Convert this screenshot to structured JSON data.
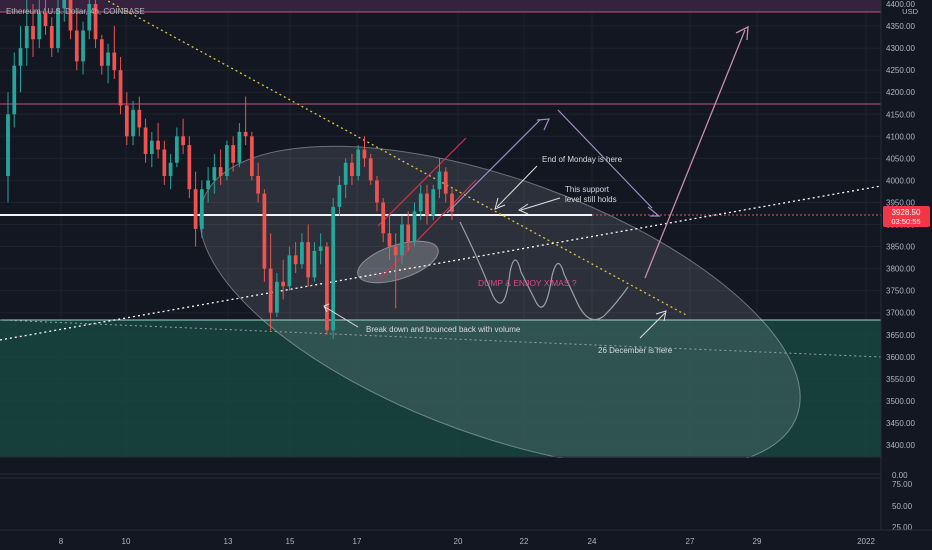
{
  "header": {
    "symbol_title": "Ethereum / U.S. Dollar, 4h, COINBASE",
    "currency": "USD"
  },
  "price_badge": {
    "price": "3928.50",
    "countdown": "03:50:55"
  },
  "annotations": {
    "end_of_monday": "End of Monday is here",
    "support_line1": "This support",
    "support_line2": "level still holds",
    "dump": "DUMP & ENJOY X'MAS ?",
    "breakdown": "Break down and bounced back with volume",
    "december": "26 December is here"
  },
  "colors": {
    "background": "#131722",
    "up_candle": "#26a69a",
    "down_candle": "#ef5350",
    "support_line": "#ffffff",
    "resistance_line": "#c2567c",
    "trendline_yellow": "#d9c43a",
    "green_zone": "#17463f",
    "price_badge": "#f23645",
    "dump_text": "#e0478f"
  },
  "chart_data": {
    "type": "candlestick",
    "symbol": "ETH/USD",
    "interval": "4h",
    "exchange": "COINBASE",
    "x_ticks": [
      "8",
      "10",
      "13",
      "15",
      "17",
      "20",
      "22",
      "24",
      "27",
      "29",
      "2022"
    ],
    "y_ticks": [
      "4400.00",
      "4350.00",
      "4300.00",
      "4250.00",
      "4200.00",
      "4150.00",
      "4100.00",
      "4050.00",
      "4000.00",
      "3950.00",
      "3900.00",
      "3850.00",
      "3800.00",
      "3750.00",
      "3700.00",
      "3650.00",
      "3600.00",
      "3550.00",
      "3500.00",
      "3450.00",
      "3400.00"
    ],
    "indicator_ticks": [
      "0.00",
      "75.00",
      "50.00",
      "25.00"
    ],
    "ylim": [
      3375,
      4410
    ],
    "last_price": 3928.5,
    "horizontal_levels": [
      {
        "name": "top resistance",
        "value": 4380
      },
      {
        "name": "resistance",
        "value": 4172
      },
      {
        "name": "support",
        "value": 3928
      },
      {
        "name": "green zone top",
        "value": 3686
      }
    ],
    "candles": [
      [
        4010,
        4200,
        3950,
        4150
      ],
      [
        4150,
        4290,
        4120,
        4260
      ],
      [
        4260,
        4350,
        4200,
        4300
      ],
      [
        4300,
        4420,
        4260,
        4350
      ],
      [
        4350,
        4400,
        4280,
        4320
      ],
      [
        4320,
        4410,
        4300,
        4380
      ],
      [
        4380,
        4450,
        4330,
        4350
      ],
      [
        4350,
        4370,
        4280,
        4300
      ],
      [
        4300,
        4420,
        4290,
        4390
      ],
      [
        4390,
        4450,
        4360,
        4420
      ],
      [
        4420,
        4440,
        4320,
        4340
      ],
      [
        4340,
        4380,
        4250,
        4270
      ],
      [
        4270,
        4360,
        4240,
        4340
      ],
      [
        4340,
        4420,
        4320,
        4400
      ],
      [
        4400,
        4420,
        4300,
        4320
      ],
      [
        4320,
        4330,
        4240,
        4260
      ],
      [
        4260,
        4310,
        4220,
        4290
      ],
      [
        4290,
        4350,
        4230,
        4250
      ],
      [
        4250,
        4280,
        4150,
        4170
      ],
      [
        4170,
        4200,
        4080,
        4100
      ],
      [
        4100,
        4180,
        4080,
        4160
      ],
      [
        4160,
        4190,
        4100,
        4120
      ],
      [
        4120,
        4140,
        4040,
        4060
      ],
      [
        4060,
        4110,
        4030,
        4090
      ],
      [
        4090,
        4130,
        4050,
        4070
      ],
      [
        4070,
        4090,
        3990,
        4010
      ],
      [
        4010,
        4060,
        3980,
        4040
      ],
      [
        4040,
        4120,
        4030,
        4100
      ],
      [
        4100,
        4140,
        4060,
        4080
      ],
      [
        4080,
        4100,
        3960,
        3980
      ],
      [
        3980,
        4020,
        3850,
        3890
      ],
      [
        3890,
        4000,
        3870,
        3980
      ],
      [
        3980,
        4030,
        3950,
        4000
      ],
      [
        4000,
        4060,
        3970,
        4030
      ],
      [
        4030,
        4070,
        3990,
        4010
      ],
      [
        4010,
        4090,
        4000,
        4080
      ],
      [
        4080,
        4100,
        4020,
        4040
      ],
      [
        4040,
        4130,
        4030,
        4110
      ],
      [
        4110,
        4190,
        4080,
        4100
      ],
      [
        4100,
        4110,
        4000,
        4010
      ],
      [
        4010,
        4040,
        3950,
        3970
      ],
      [
        3970,
        3980,
        3770,
        3800
      ],
      [
        3800,
        3880,
        3660,
        3700
      ],
      [
        3700,
        3790,
        3690,
        3770
      ],
      [
        3770,
        3820,
        3730,
        3760
      ],
      [
        3760,
        3850,
        3750,
        3830
      ],
      [
        3830,
        3860,
        3790,
        3810
      ],
      [
        3810,
        3880,
        3800,
        3860
      ],
      [
        3860,
        3900,
        3760,
        3780
      ],
      [
        3780,
        3860,
        3770,
        3840
      ],
      [
        3840,
        3880,
        3810,
        3850
      ],
      [
        3850,
        3860,
        3650,
        3660
      ],
      [
        3660,
        3960,
        3640,
        3940
      ],
      [
        3940,
        4010,
        3920,
        3990
      ],
      [
        3990,
        4050,
        3960,
        4040
      ],
      [
        4040,
        4060,
        3990,
        4010
      ],
      [
        4010,
        4080,
        4000,
        4070
      ],
      [
        4070,
        4100,
        4030,
        4050
      ],
      [
        4050,
        4060,
        3990,
        4000
      ],
      [
        4000,
        4010,
        3930,
        3950
      ],
      [
        3950,
        3960,
        3860,
        3880
      ],
      [
        3880,
        3920,
        3820,
        3850
      ],
      [
        3850,
        3880,
        3710,
        3830
      ],
      [
        3830,
        3920,
        3810,
        3900
      ],
      [
        3900,
        3930,
        3840,
        3860
      ],
      [
        3860,
        3950,
        3850,
        3930
      ],
      [
        3930,
        3990,
        3910,
        3970
      ],
      [
        3970,
        3990,
        3900,
        3920
      ],
      [
        3920,
        3990,
        3910,
        3980
      ],
      [
        3980,
        4050,
        3960,
        4020
      ],
      [
        4020,
        4030,
        3950,
        3970
      ],
      [
        3970,
        3980,
        3910,
        3929
      ]
    ]
  }
}
